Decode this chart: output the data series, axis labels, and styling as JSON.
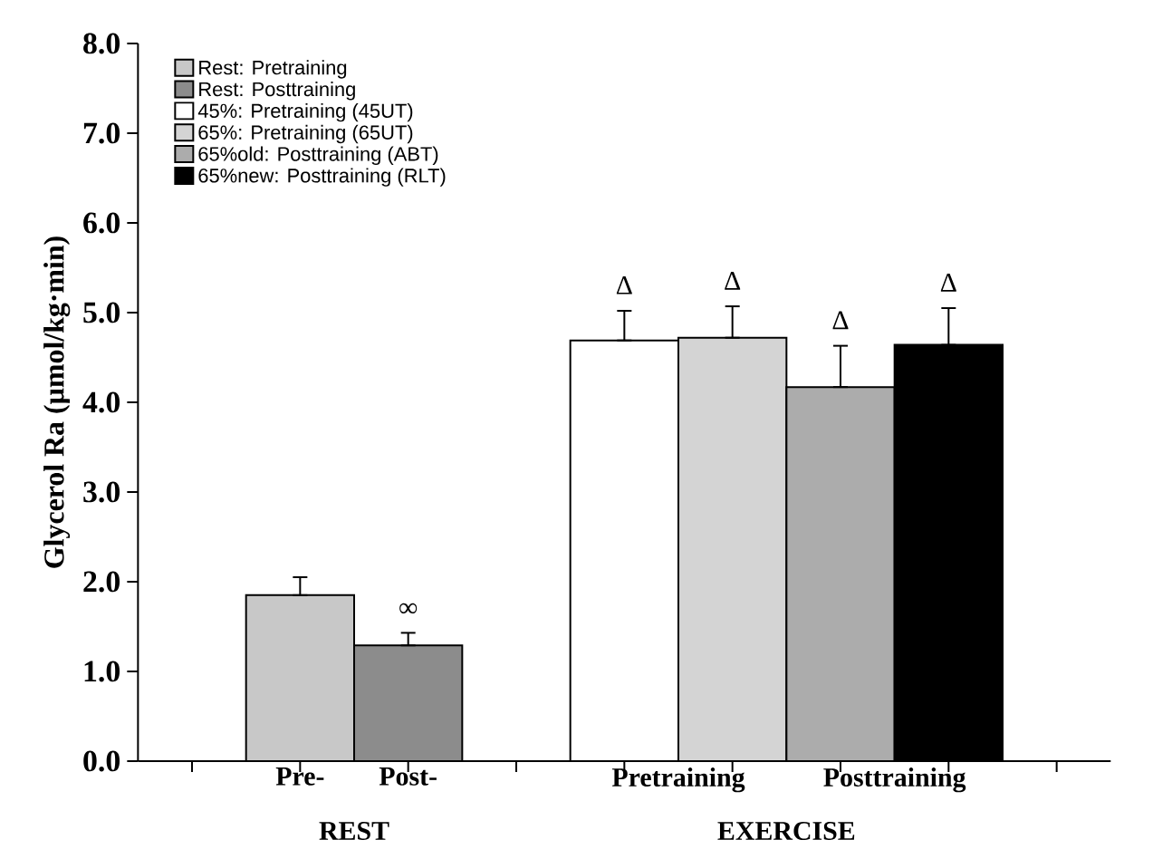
{
  "chart_data": {
    "type": "bar",
    "ylabel": "Glycerol Ra (µmol/kg·min)",
    "ylim": [
      0,
      8
    ],
    "yticks": [
      {
        "value": 0,
        "label": "0.0"
      },
      {
        "value": 1,
        "label": "1.0"
      },
      {
        "value": 2,
        "label": "2.0"
      },
      {
        "value": 3,
        "label": "3.0"
      },
      {
        "value": 4,
        "label": "4.0"
      },
      {
        "value": 5,
        "label": "5.0"
      },
      {
        "value": 6,
        "label": "6.0"
      },
      {
        "value": 7,
        "label": "7.0"
      },
      {
        "value": 8,
        "label": "8.0"
      }
    ],
    "categories": [
      null,
      "Pre-",
      "Post-",
      null,
      "Pretraining",
      "Posttraining",
      null
    ],
    "series": [
      {
        "name": "Rest: Pretraining",
        "color": "#c8c8c8",
        "values": [
          null,
          1.85,
          null,
          null,
          null,
          null,
          null
        ],
        "errors": [
          null,
          [
            1.85,
            2.05
          ],
          null,
          null,
          null,
          null,
          null
        ]
      },
      {
        "name": "Rest: Posttraining",
        "color": "#8c8c8c",
        "values": [
          null,
          null,
          1.29,
          null,
          null,
          null,
          null
        ],
        "errors": [
          null,
          null,
          [
            1.29,
            1.43
          ],
          null,
          null,
          null,
          null
        ],
        "value_labels": [
          null,
          null,
          "∞",
          null,
          null,
          null,
          null
        ]
      },
      {
        "name": "45%: Pretraining (45UT)",
        "color": "#ffffff",
        "values": [
          null,
          null,
          null,
          null,
          4.69,
          null,
          null
        ],
        "errors": [
          null,
          null,
          null,
          null,
          [
            4.69,
            5.02
          ],
          null,
          null
        ],
        "value_labels": [
          null,
          null,
          null,
          null,
          "Δ",
          null,
          null
        ]
      },
      {
        "name": "65%: Pretraining (65UT)",
        "color": "#d4d4d4",
        "values": [
          null,
          null,
          null,
          null,
          4.72,
          null,
          null
        ],
        "errors": [
          null,
          null,
          null,
          null,
          [
            4.72,
            5.07
          ],
          null,
          null
        ],
        "value_labels": [
          null,
          null,
          null,
          null,
          "Δ",
          null,
          null
        ]
      },
      {
        "name": "65%old: Posttraining (ABT)",
        "color": "#acacac",
        "values": [
          null,
          null,
          null,
          null,
          null,
          4.17,
          null
        ],
        "errors": [
          null,
          null,
          null,
          null,
          null,
          [
            4.17,
            4.63
          ],
          null
        ],
        "value_labels": [
          null,
          null,
          null,
          null,
          null,
          "Δ",
          null
        ]
      },
      {
        "name": "65%new: Posttraining (RLT)",
        "color": "#000000",
        "values": [
          null,
          null,
          null,
          null,
          null,
          4.64,
          null
        ],
        "errors": [
          null,
          null,
          null,
          null,
          null,
          [
            4.64,
            5.05
          ],
          null
        ],
        "value_labels": [
          null,
          null,
          null,
          null,
          null,
          "Δ",
          null
        ]
      }
    ],
    "annotations": [
      "REST",
      "EXERCISE"
    ],
    "legend": "top left"
  }
}
